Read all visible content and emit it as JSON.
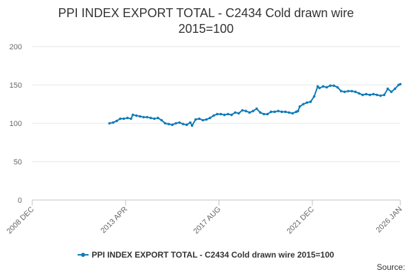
{
  "title_line1": "PPI INDEX EXPORT TOTAL - C2434 Cold drawn wire",
  "title_line2": "2015=100",
  "source_label": "Source:",
  "colors": {
    "series": "#0e7ab8",
    "grid": "#e6e6e6",
    "axis_text": "#666666",
    "title": "#333333"
  },
  "chart_data": {
    "type": "line",
    "title": "PPI INDEX EXPORT TOTAL - C2434 Cold drawn wire 2015=100",
    "xlabel": "",
    "ylabel": "",
    "x_range": [
      "2008-12",
      "2026-01"
    ],
    "ylim": [
      0,
      200
    ],
    "yticks": [
      0,
      50,
      100,
      150,
      200
    ],
    "xticks": [
      {
        "label": "2008 DEC",
        "date": "2008-12"
      },
      {
        "label": "2013 APR",
        "date": "2013-04"
      },
      {
        "label": "2017 AUG",
        "date": "2017-08"
      },
      {
        "label": "2021 DEC",
        "date": "2021-12"
      },
      {
        "label": "2026 JAN",
        "date": "2026-01"
      }
    ],
    "grid": true,
    "legend_position": "bottom-center",
    "series": [
      {
        "name": "PPI INDEX EXPORT TOTAL - C2434 Cold drawn wire 2015=100",
        "points": [
          [
            "2012-07",
            100
          ],
          [
            "2012-09",
            101
          ],
          [
            "2012-11",
            103
          ],
          [
            "2013-01",
            106
          ],
          [
            "2013-03",
            106
          ],
          [
            "2013-05",
            107
          ],
          [
            "2013-07",
            106
          ],
          [
            "2013-08",
            111
          ],
          [
            "2013-10",
            110
          ],
          [
            "2013-12",
            109
          ],
          [
            "2014-02",
            108
          ],
          [
            "2014-04",
            108
          ],
          [
            "2014-06",
            107
          ],
          [
            "2014-08",
            106
          ],
          [
            "2014-10",
            107
          ],
          [
            "2014-12",
            104
          ],
          [
            "2015-02",
            100
          ],
          [
            "2015-04",
            99
          ],
          [
            "2015-06",
            98
          ],
          [
            "2015-08",
            100
          ],
          [
            "2015-10",
            101
          ],
          [
            "2015-12",
            99
          ],
          [
            "2016-02",
            98
          ],
          [
            "2016-04",
            101
          ],
          [
            "2016-05",
            97
          ],
          [
            "2016-07",
            105
          ],
          [
            "2016-09",
            106
          ],
          [
            "2016-11",
            104
          ],
          [
            "2017-01",
            105
          ],
          [
            "2017-03",
            107
          ],
          [
            "2017-05",
            110
          ],
          [
            "2017-07",
            112
          ],
          [
            "2017-09",
            112
          ],
          [
            "2017-11",
            111
          ],
          [
            "2018-01",
            112
          ],
          [
            "2018-03",
            111
          ],
          [
            "2018-05",
            114
          ],
          [
            "2018-07",
            113
          ],
          [
            "2018-09",
            117
          ],
          [
            "2018-11",
            116
          ],
          [
            "2019-01",
            114
          ],
          [
            "2019-03",
            116
          ],
          [
            "2019-05",
            119
          ],
          [
            "2019-07",
            114
          ],
          [
            "2019-09",
            112
          ],
          [
            "2019-11",
            112
          ],
          [
            "2020-01",
            115
          ],
          [
            "2020-03",
            115
          ],
          [
            "2020-05",
            116
          ],
          [
            "2020-07",
            115
          ],
          [
            "2020-09",
            115
          ],
          [
            "2020-11",
            114
          ],
          [
            "2021-01",
            113
          ],
          [
            "2021-03",
            115
          ],
          [
            "2021-04",
            116
          ],
          [
            "2021-05",
            122
          ],
          [
            "2021-07",
            125
          ],
          [
            "2021-09",
            127
          ],
          [
            "2021-11",
            128
          ],
          [
            "2022-01",
            135
          ],
          [
            "2022-03",
            148
          ],
          [
            "2022-04",
            146
          ],
          [
            "2022-06",
            148
          ],
          [
            "2022-08",
            147
          ],
          [
            "2022-10",
            149
          ],
          [
            "2022-12",
            149
          ],
          [
            "2023-02",
            147
          ],
          [
            "2023-04",
            142
          ],
          [
            "2023-06",
            141
          ],
          [
            "2023-08",
            142
          ],
          [
            "2023-10",
            142
          ],
          [
            "2023-12",
            141
          ],
          [
            "2024-02",
            139
          ],
          [
            "2024-04",
            137
          ],
          [
            "2024-06",
            138
          ],
          [
            "2024-08",
            137
          ],
          [
            "2024-10",
            138
          ],
          [
            "2024-12",
            137
          ],
          [
            "2025-02",
            136
          ],
          [
            "2025-04",
            137
          ],
          [
            "2025-06",
            145
          ],
          [
            "2025-08",
            141
          ],
          [
            "2025-10",
            145
          ],
          [
            "2025-12",
            150
          ],
          [
            "2026-01",
            151
          ]
        ]
      }
    ]
  }
}
